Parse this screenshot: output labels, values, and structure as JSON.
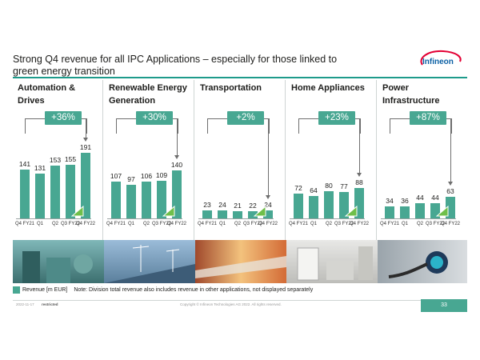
{
  "slide": {
    "title": "Strong Q4 revenue for all IPC Applications – especially for those linked to green energy transition",
    "logo_text": "Infineon"
  },
  "colors": {
    "accent": "#48a792",
    "rule": "#1e9b8b",
    "logo_red": "#e30034",
    "logo_blue": "#0a5fa4"
  },
  "chart_data": [
    {
      "type": "bar",
      "title": "Automation & Drives",
      "growth": "+36%",
      "categories": [
        "Q4 FY21",
        "Q1",
        "Q2",
        "Q3 FY22",
        "Q4 FY22"
      ],
      "values": [
        141,
        131,
        153,
        155,
        191
      ]
    },
    {
      "type": "bar",
      "title": "Renewable Energy Generation",
      "growth": "+30%",
      "categories": [
        "Q4 FY21",
        "Q1",
        "Q2",
        "Q3 FY22",
        "Q4 FY22"
      ],
      "values": [
        107,
        97,
        106,
        109,
        140
      ]
    },
    {
      "type": "bar",
      "title": "Transportation",
      "growth": "+2%",
      "categories": [
        "Q4 FY21",
        "Q1",
        "Q2",
        "Q3 FY22",
        "Q4 FY22"
      ],
      "values": [
        23,
        24,
        21,
        22,
        24
      ]
    },
    {
      "type": "bar",
      "title": "Home Appliances",
      "growth": "+23%",
      "categories": [
        "Q4 FY21",
        "Q1",
        "Q2",
        "Q3 FY22",
        "Q4 FY22"
      ],
      "values": [
        72,
        64,
        80,
        77,
        88
      ]
    },
    {
      "type": "bar",
      "title": "Power Infrastructure",
      "growth": "+87%",
      "categories": [
        "Q4 FY21",
        "Q1",
        "Q2",
        "Q3 FY22",
        "Q4 FY22"
      ],
      "values": [
        34,
        36,
        44,
        44,
        63
      ]
    }
  ],
  "legend": {
    "label": "Revenue [m EUR]",
    "note": "Note: Division total revenue also includes revenue in other applications, not displayed separately"
  },
  "footer": {
    "date": "2022-11-17",
    "classification": "restricted",
    "copyright": "Copyright © Infineon Technologies AG 2022. All rights reserved.",
    "page": "33"
  }
}
